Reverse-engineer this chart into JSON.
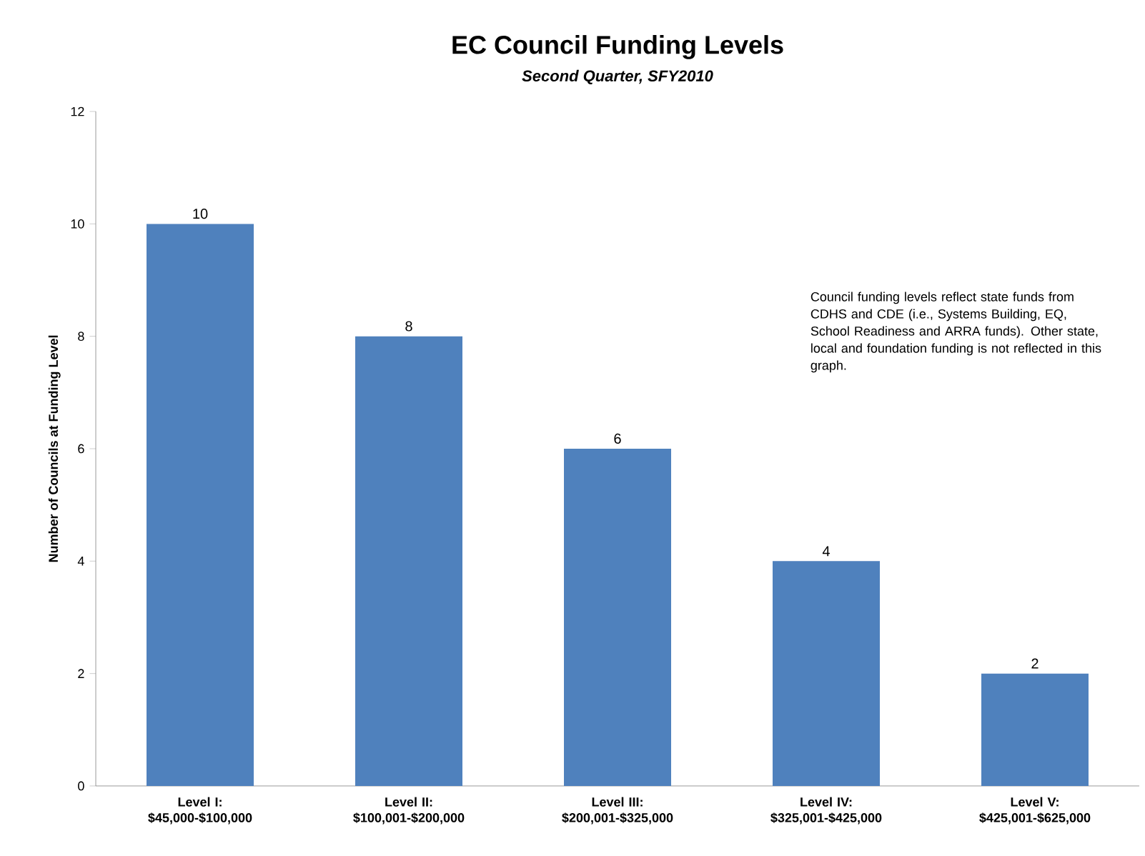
{
  "chart_data": {
    "type": "bar",
    "title": "EC Council Funding Levels",
    "subtitle": "Second Quarter, SFY2010",
    "ylabel": "Number of Councils at Funding Level",
    "categories": [
      "Level I: $45,000-$100,000",
      "Level II: $100,001-$200,000",
      "Level III: $200,001-$325,000",
      "Level IV: $325,001-$425,000",
      "Level V: $425,001-$625,000"
    ],
    "values": [
      10,
      8,
      6,
      4,
      2
    ],
    "color": "#4f81bd",
    "ylim": [
      0,
      12
    ],
    "yticks": [
      0,
      2,
      4,
      6,
      8,
      10,
      12
    ],
    "grid": false,
    "data_labels": true,
    "annotations": [
      "Council funding levels reflect state funds from CDHS and CDE (i.e., Systems Building, EQ, School Readiness and ARRA funds).  Other state, local and foundation funding is not reflected in this graph."
    ]
  }
}
